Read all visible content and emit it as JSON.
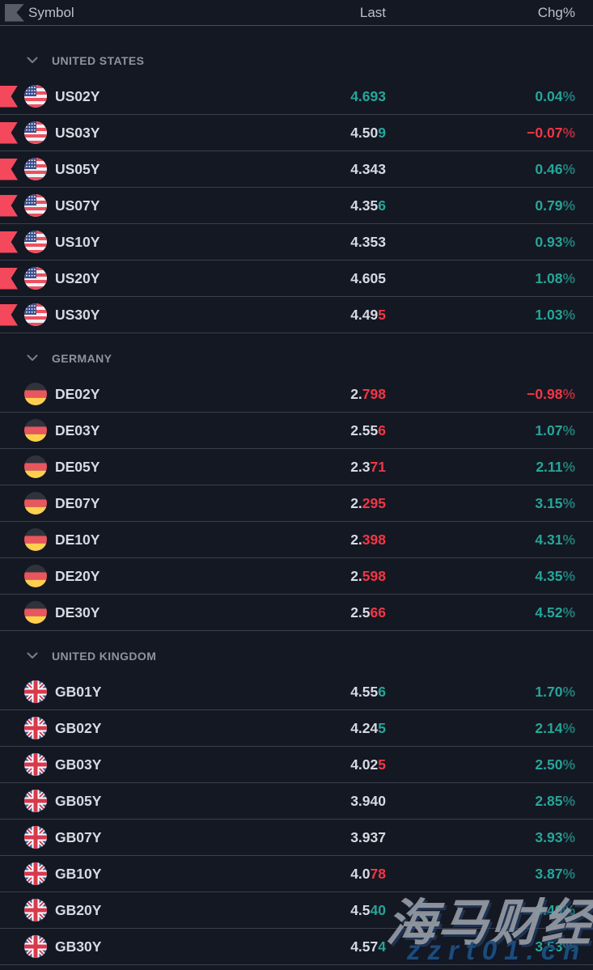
{
  "header": {
    "symbol_label": "Symbol",
    "last_label": "Last",
    "chg_label": "Chg%"
  },
  "units": {
    "pct": "%"
  },
  "colors": {
    "background": "#141823",
    "separator": "#3a3f4c",
    "up": "#26a69a",
    "down": "#f23645",
    "text": "#d7dae2",
    "muted": "#8e93a1",
    "flag_marker": "#f4495c"
  },
  "sections": [
    {
      "label": "UNITED STATES",
      "country": "us",
      "rows": [
        {
          "symbol": "US02Y",
          "flagged": true,
          "last_base": "",
          "last_tail": "4.693",
          "tail_dir": "up",
          "chg": "0.04",
          "chg_dir": "up"
        },
        {
          "symbol": "US03Y",
          "flagged": true,
          "last_base": "4.50",
          "last_tail": "9",
          "tail_dir": "up",
          "chg": "−0.07",
          "chg_dir": "down"
        },
        {
          "symbol": "US05Y",
          "flagged": true,
          "last_base": "4.343",
          "last_tail": "",
          "tail_dir": "",
          "chg": "0.46",
          "chg_dir": "up"
        },
        {
          "symbol": "US07Y",
          "flagged": true,
          "last_base": "4.35",
          "last_tail": "6",
          "tail_dir": "up",
          "chg": "0.79",
          "chg_dir": "up"
        },
        {
          "symbol": "US10Y",
          "flagged": true,
          "last_base": "4.353",
          "last_tail": "",
          "tail_dir": "",
          "chg": "0.93",
          "chg_dir": "up"
        },
        {
          "symbol": "US20Y",
          "flagged": true,
          "last_base": "4.605",
          "last_tail": "",
          "tail_dir": "",
          "chg": "1.08",
          "chg_dir": "up"
        },
        {
          "symbol": "US30Y",
          "flagged": true,
          "last_base": "4.49",
          "last_tail": "5",
          "tail_dir": "down",
          "chg": "1.03",
          "chg_dir": "up"
        }
      ]
    },
    {
      "label": "GERMANY",
      "country": "de",
      "rows": [
        {
          "symbol": "DE02Y",
          "flagged": false,
          "last_base": "2.",
          "last_tail": "798",
          "tail_dir": "down",
          "chg": "−0.98",
          "chg_dir": "down"
        },
        {
          "symbol": "DE03Y",
          "flagged": false,
          "last_base": "2.55",
          "last_tail": "6",
          "tail_dir": "down",
          "chg": "1.07",
          "chg_dir": "up"
        },
        {
          "symbol": "DE05Y",
          "flagged": false,
          "last_base": "2.3",
          "last_tail": "71",
          "tail_dir": "down",
          "chg": "2.11",
          "chg_dir": "up"
        },
        {
          "symbol": "DE07Y",
          "flagged": false,
          "last_base": "2.",
          "last_tail": "295",
          "tail_dir": "down",
          "chg": "3.15",
          "chg_dir": "up"
        },
        {
          "symbol": "DE10Y",
          "flagged": false,
          "last_base": "2.",
          "last_tail": "398",
          "tail_dir": "down",
          "chg": "4.31",
          "chg_dir": "up"
        },
        {
          "symbol": "DE20Y",
          "flagged": false,
          "last_base": "2.",
          "last_tail": "598",
          "tail_dir": "down",
          "chg": "4.35",
          "chg_dir": "up"
        },
        {
          "symbol": "DE30Y",
          "flagged": false,
          "last_base": "2.5",
          "last_tail": "66",
          "tail_dir": "down",
          "chg": "4.52",
          "chg_dir": "up"
        }
      ]
    },
    {
      "label": "UNITED KINGDOM",
      "country": "gb",
      "rows": [
        {
          "symbol": "GB01Y",
          "flagged": false,
          "last_base": "4.55",
          "last_tail": "6",
          "tail_dir": "up",
          "chg": "1.70",
          "chg_dir": "up"
        },
        {
          "symbol": "GB02Y",
          "flagged": false,
          "last_base": "4.24",
          "last_tail": "5",
          "tail_dir": "up",
          "chg": "2.14",
          "chg_dir": "up"
        },
        {
          "symbol": "GB03Y",
          "flagged": false,
          "last_base": "4.02",
          "last_tail": "5",
          "tail_dir": "down",
          "chg": "2.50",
          "chg_dir": "up"
        },
        {
          "symbol": "GB05Y",
          "flagged": false,
          "last_base": "3.940",
          "last_tail": "",
          "tail_dir": "",
          "chg": "2.85",
          "chg_dir": "up"
        },
        {
          "symbol": "GB07Y",
          "flagged": false,
          "last_base": "3.937",
          "last_tail": "",
          "tail_dir": "",
          "chg": "3.93",
          "chg_dir": "up"
        },
        {
          "symbol": "GB10Y",
          "flagged": false,
          "last_base": "4.0",
          "last_tail": "78",
          "tail_dir": "down",
          "chg": "3.87",
          "chg_dir": "up"
        },
        {
          "symbol": "GB20Y",
          "flagged": false,
          "last_base": "4.5",
          "last_tail": "40",
          "tail_dir": "up",
          "chg": "3.49",
          "chg_dir": "up"
        },
        {
          "symbol": "GB30Y",
          "flagged": false,
          "last_base": "4.57",
          "last_tail": "4",
          "tail_dir": "up",
          "chg": "3.53",
          "chg_dir": "up"
        }
      ]
    }
  ],
  "watermark": {
    "title": "海马财经",
    "url": "zzrt01.cn"
  }
}
